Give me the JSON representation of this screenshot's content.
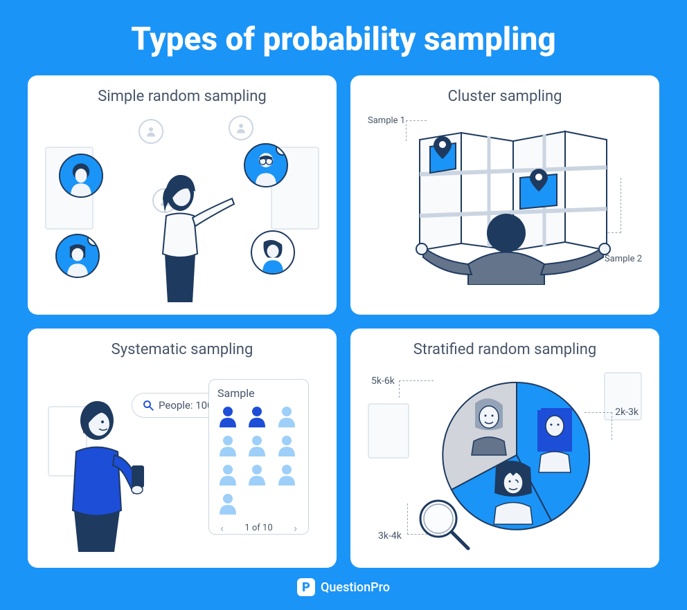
{
  "title": "Types of probability sampling",
  "colors": {
    "background": "#1b94f7",
    "card_bg": "#ffffff",
    "text_title": "#ffffff",
    "text_body": "#475569",
    "accent_dark": "#1e3a5f",
    "accent_blue": "#1b94f7",
    "light_blue": "#9dcff9",
    "dark_person": "#1d4ed8",
    "border_light": "#cbd5e1",
    "dash": "#94a3b8"
  },
  "cards": {
    "simple": {
      "title": "Simple random sampling",
      "avatars": [
        {
          "bg": "blue",
          "checked": false
        },
        {
          "bg": "blue",
          "checked": true
        },
        {
          "bg": "blue",
          "checked": true
        },
        {
          "bg": "white",
          "checked": false
        }
      ]
    },
    "cluster": {
      "title": "Cluster sampling",
      "label1": "Sample 1",
      "label2": "Sample 2"
    },
    "systematic": {
      "title": "Systematic sampling",
      "search_text": "People: 100",
      "panel_title": "Sample",
      "pager_text": "1 of 10",
      "people_grid": {
        "rows": 4,
        "cols": 3,
        "selected_indices": [
          0,
          1
        ],
        "count": 10,
        "selected_color": "#1d4ed8",
        "unselected_color": "#9dcff9"
      }
    },
    "stratified": {
      "title": "Stratified random sampling",
      "label1": "5k-6k",
      "label2": "2k-3k",
      "label3": "3k-4k",
      "pie": {
        "slices": [
          {
            "label": "5k-6k",
            "value": 40,
            "color": "#d1d5db"
          },
          {
            "label": "2k-3k",
            "value": 30,
            "color": "#1b94f7"
          },
          {
            "label": "3k-4k",
            "value": 30,
            "color": "#1b94f7"
          }
        ]
      }
    }
  },
  "footer": {
    "brand": "QuestionPro",
    "icon_letter": "P"
  }
}
